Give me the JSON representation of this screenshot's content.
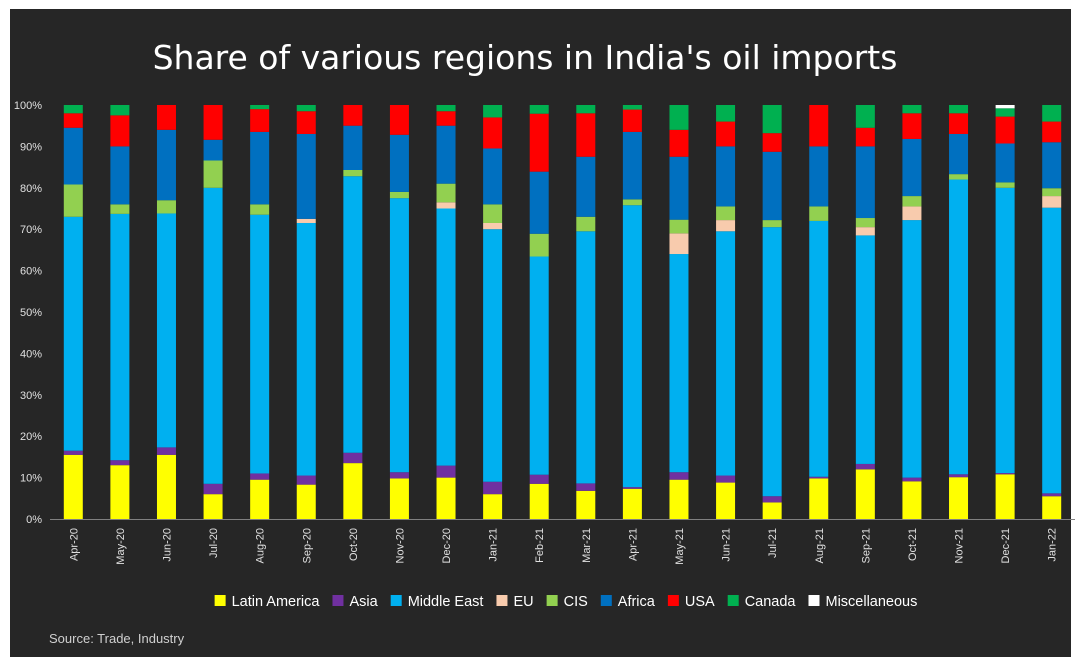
{
  "chart_data": {
    "type": "bar",
    "stacked": true,
    "title": "Share of various regions in India's oil imports",
    "source": "Source: Trade, Industry",
    "xlabel": "",
    "ylabel": "",
    "ylim": [
      0,
      100
    ],
    "yticks": [
      "0%",
      "10%",
      "20%",
      "30%",
      "40%",
      "50%",
      "60%",
      "70%",
      "80%",
      "90%",
      "100%"
    ],
    "legend_position": "bottom",
    "categories": [
      "Apr-20",
      "May-20",
      "Jun-20",
      "Jul-20",
      "Aug-20",
      "Sep-20",
      "Oct-20",
      "Nov-20",
      "Dec-20",
      "Jan-21",
      "Feb-21",
      "Mar-21",
      "Apr-21",
      "May-21",
      "Jun-21",
      "Jul-21",
      "Aug-21",
      "Sep-21",
      "Oct-21",
      "Nov-21",
      "Dec-21",
      "Jan-22"
    ],
    "series": [
      {
        "name": "Latin America",
        "color": "#ffff00",
        "values": [
          15.5,
          13,
          15.5,
          6,
          9.5,
          8.3,
          13.5,
          9.8,
          10,
          6,
          8.5,
          6.8,
          7.3,
          9.5,
          8.8,
          4,
          9.8,
          12,
          9.1,
          10.1,
          10.8,
          5.5
        ]
      },
      {
        "name": "Asia",
        "color": "#7030a0",
        "values": [
          1,
          1.2,
          1.8,
          2.5,
          1.5,
          2.2,
          2.5,
          1.5,
          2.9,
          3,
          2.2,
          1.8,
          0.4,
          1.8,
          1.7,
          1.5,
          0.4,
          1.3,
          0.9,
          0.7,
          0.3,
          0.7
        ]
      },
      {
        "name": "Middle East",
        "color": "#00b0f0",
        "values": [
          56.5,
          59.5,
          56.5,
          71.5,
          62.5,
          61,
          66.8,
          66.2,
          62.1,
          61,
          52.7,
          60.9,
          68.1,
          52.7,
          59,
          65,
          61.8,
          55.2,
          62.2,
          71.2,
          68.9,
          69
        ]
      },
      {
        "name": "EU",
        "color": "#f8cbad",
        "values": [
          0,
          0,
          0,
          0,
          0,
          1,
          0,
          0,
          1.5,
          1.5,
          0,
          0,
          0,
          5,
          2.7,
          0,
          0,
          2,
          3.3,
          0,
          0,
          2.8
        ]
      },
      {
        "name": "CIS",
        "color": "#92d050",
        "values": [
          7.8,
          2.3,
          3.2,
          6.6,
          2.5,
          0,
          1.5,
          1.5,
          4.5,
          4.5,
          5.5,
          3.5,
          1.4,
          3.3,
          3.3,
          1.7,
          3.5,
          2.2,
          2.5,
          1.3,
          1.3,
          1.9
        ]
      },
      {
        "name": "Africa",
        "color": "#0070c0",
        "values": [
          13.7,
          14,
          17,
          5,
          17.5,
          20.5,
          10.7,
          13.8,
          14,
          13.5,
          15,
          14.5,
          16.3,
          15.2,
          14.5,
          16.5,
          14.5,
          17.3,
          13.8,
          9.7,
          9.4,
          11.1
        ]
      },
      {
        "name": "USA",
        "color": "#ff0000",
        "values": [
          3.5,
          7.5,
          6,
          8.4,
          5.5,
          5.5,
          5,
          7.2,
          3.5,
          7.5,
          14,
          10.5,
          5.4,
          6.5,
          6,
          4.5,
          10,
          4.5,
          6.2,
          5,
          6.5,
          5
        ]
      },
      {
        "name": "Canada",
        "color": "#00b050",
        "values": [
          2,
          2.5,
          0,
          0,
          1,
          1.5,
          0,
          0,
          1.5,
          3,
          2.1,
          2,
          1.1,
          6,
          4,
          6.8,
          0,
          5.5,
          2,
          2,
          2,
          4
        ]
      },
      {
        "name": "Miscellaneous",
        "color": "#ffffff",
        "values": [
          0,
          0,
          0,
          0,
          0,
          0,
          0,
          0,
          0,
          0,
          0,
          0,
          0,
          0,
          0,
          0,
          0,
          0,
          0,
          0,
          0.8,
          0
        ]
      }
    ]
  }
}
